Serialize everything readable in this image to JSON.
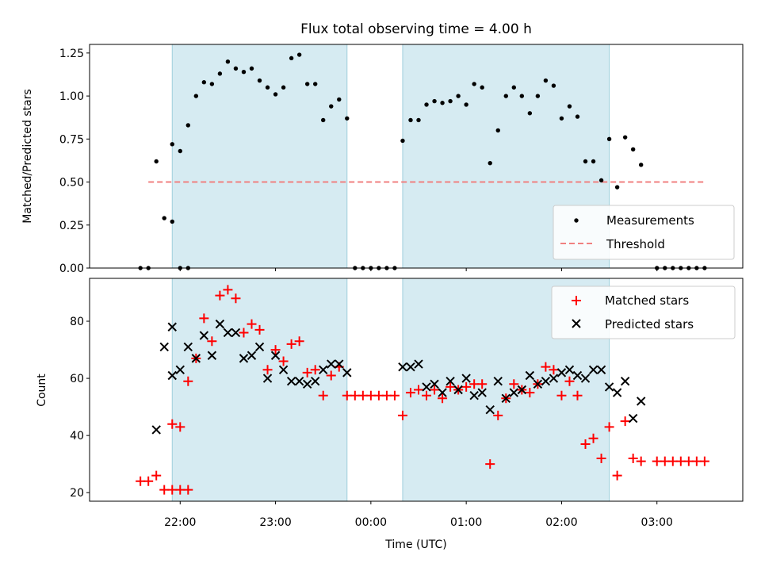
{
  "chart_data": [
    {
      "type": "scatter",
      "title": "Flux total observing time = 4.00 h",
      "ylabel": "Matched/Predicted stars",
      "xlabel": "",
      "ylim": [
        0,
        1.3
      ],
      "xlim_hours": [
        -2.95,
        3.9
      ],
      "yticks": [
        0,
        0.25,
        0.5,
        0.75,
        1.0,
        1.25
      ],
      "ytick_labels": [
        "0.00",
        "0.25",
        "0.50",
        "0.75",
        "1.00",
        "1.25"
      ],
      "legend_position": "lower-right",
      "shaded_time_ranges": [
        {
          "start": "21:55",
          "end": "23:45"
        },
        {
          "start": "00:20",
          "end": "02:30"
        }
      ],
      "threshold": {
        "name": "Threshold",
        "value": 0.5,
        "x_start": "21:40",
        "x_end": "03:30",
        "color": "#f08080"
      },
      "series": [
        {
          "name": "Measurements",
          "color": "#000000",
          "marker": "dot",
          "points": [
            [
              "21:35",
              0.0
            ],
            [
              "21:40",
              0.0
            ],
            [
              "21:45",
              0.62
            ],
            [
              "21:50",
              0.29
            ],
            [
              "21:55",
              0.27
            ],
            [
              "22:00",
              0.0
            ],
            [
              "22:05",
              0.0
            ],
            [
              "21:55",
              0.72
            ],
            [
              "22:00",
              0.68
            ],
            [
              "22:05",
              0.83
            ],
            [
              "22:10",
              1.0
            ],
            [
              "22:15",
              1.08
            ],
            [
              "22:20",
              1.07
            ],
            [
              "22:25",
              1.13
            ],
            [
              "22:30",
              1.2
            ],
            [
              "22:35",
              1.16
            ],
            [
              "22:40",
              1.14
            ],
            [
              "22:45",
              1.16
            ],
            [
              "22:50",
              1.09
            ],
            [
              "22:55",
              1.05
            ],
            [
              "23:00",
              1.01
            ],
            [
              "23:05",
              1.05
            ],
            [
              "23:10",
              1.22
            ],
            [
              "23:15",
              1.24
            ],
            [
              "23:20",
              1.07
            ],
            [
              "23:25",
              1.07
            ],
            [
              "23:30",
              0.86
            ],
            [
              "23:35",
              0.94
            ],
            [
              "23:40",
              0.98
            ],
            [
              "23:45",
              0.87
            ],
            [
              "23:50",
              0.0
            ],
            [
              "23:55",
              0.0
            ],
            [
              "00:00",
              0.0
            ],
            [
              "00:05",
              0.0
            ],
            [
              "00:10",
              0.0
            ],
            [
              "00:15",
              0.0
            ],
            [
              "00:20",
              0.74
            ],
            [
              "00:25",
              0.86
            ],
            [
              "00:30",
              0.86
            ],
            [
              "00:35",
              0.95
            ],
            [
              "00:40",
              0.97
            ],
            [
              "00:45",
              0.96
            ],
            [
              "00:50",
              0.97
            ],
            [
              "00:55",
              1.0
            ],
            [
              "01:00",
              0.95
            ],
            [
              "01:05",
              1.07
            ],
            [
              "01:10",
              1.05
            ],
            [
              "01:15",
              0.61
            ],
            [
              "01:20",
              0.8
            ],
            [
              "01:25",
              1.0
            ],
            [
              "01:30",
              1.05
            ],
            [
              "01:35",
              1.0
            ],
            [
              "01:40",
              0.9
            ],
            [
              "01:45",
              1.0
            ],
            [
              "01:50",
              1.09
            ],
            [
              "01:55",
              1.06
            ],
            [
              "02:00",
              0.87
            ],
            [
              "02:05",
              0.94
            ],
            [
              "02:10",
              0.88
            ],
            [
              "02:15",
              0.62
            ],
            [
              "02:20",
              0.62
            ],
            [
              "02:25",
              0.51
            ],
            [
              "02:30",
              0.75
            ],
            [
              "02:35",
              0.47
            ],
            [
              "02:40",
              0.76
            ],
            [
              "02:45",
              0.69
            ],
            [
              "02:50",
              0.6
            ],
            [
              "03:00",
              0.0
            ],
            [
              "03:05",
              0.0
            ],
            [
              "03:10",
              0.0
            ],
            [
              "03:15",
              0.0
            ],
            [
              "03:20",
              0.0
            ],
            [
              "03:25",
              0.0
            ],
            [
              "03:30",
              0.0
            ]
          ]
        }
      ]
    },
    {
      "type": "scatter",
      "title": "",
      "xlabel": "Time (UTC)",
      "ylabel": "Count",
      "ylim": [
        17,
        95
      ],
      "xlim_hours": [
        -2.95,
        3.9
      ],
      "yticks": [
        20,
        40,
        60,
        80
      ],
      "ytick_labels": [
        "20",
        "40",
        "60",
        "80"
      ],
      "xticks": [
        "22:00",
        "23:00",
        "00:00",
        "01:00",
        "02:00",
        "03:00"
      ],
      "legend_position": "upper-right",
      "shaded_time_ranges": [
        {
          "start": "21:55",
          "end": "23:45"
        },
        {
          "start": "00:20",
          "end": "02:30"
        }
      ],
      "series": [
        {
          "name": "Matched stars",
          "color": "#ff0000",
          "marker": "plus",
          "points": [
            [
              "21:35",
              24
            ],
            [
              "21:40",
              24
            ],
            [
              "21:45",
              26
            ],
            [
              "21:50",
              21
            ],
            [
              "21:55",
              21
            ],
            [
              "22:00",
              21
            ],
            [
              "22:05",
              21
            ],
            [
              "21:55",
              44
            ],
            [
              "22:00",
              43
            ],
            [
              "22:05",
              59
            ],
            [
              "22:10",
              67
            ],
            [
              "22:15",
              81
            ],
            [
              "22:20",
              73
            ],
            [
              "22:25",
              89
            ],
            [
              "22:30",
              91
            ],
            [
              "22:35",
              88
            ],
            [
              "22:40",
              76
            ],
            [
              "22:45",
              79
            ],
            [
              "22:50",
              77
            ],
            [
              "22:55",
              63
            ],
            [
              "23:00",
              70
            ],
            [
              "23:05",
              66
            ],
            [
              "23:10",
              72
            ],
            [
              "23:15",
              73
            ],
            [
              "23:20",
              62
            ],
            [
              "23:25",
              63
            ],
            [
              "23:30",
              54
            ],
            [
              "23:35",
              61
            ],
            [
              "23:40",
              64
            ],
            [
              "23:45",
              54
            ],
            [
              "23:50",
              54
            ],
            [
              "23:55",
              54
            ],
            [
              "00:00",
              54
            ],
            [
              "00:05",
              54
            ],
            [
              "00:10",
              54
            ],
            [
              "00:15",
              54
            ],
            [
              "00:20",
              47
            ],
            [
              "00:25",
              55
            ],
            [
              "00:30",
              56
            ],
            [
              "00:35",
              54
            ],
            [
              "00:40",
              56
            ],
            [
              "00:45",
              53
            ],
            [
              "00:50",
              57
            ],
            [
              "00:55",
              56
            ],
            [
              "01:00",
              57
            ],
            [
              "01:05",
              58
            ],
            [
              "01:10",
              58
            ],
            [
              "01:15",
              30
            ],
            [
              "01:20",
              47
            ],
            [
              "01:25",
              53
            ],
            [
              "01:30",
              58
            ],
            [
              "01:35",
              56
            ],
            [
              "01:40",
              55
            ],
            [
              "01:45",
              58
            ],
            [
              "01:50",
              64
            ],
            [
              "01:55",
              63
            ],
            [
              "02:00",
              54
            ],
            [
              "02:05",
              59
            ],
            [
              "02:10",
              54
            ],
            [
              "02:15",
              37
            ],
            [
              "02:20",
              39
            ],
            [
              "02:25",
              32
            ],
            [
              "02:30",
              43
            ],
            [
              "02:35",
              26
            ],
            [
              "02:40",
              45
            ],
            [
              "02:45",
              32
            ],
            [
              "02:50",
              31
            ],
            [
              "03:00",
              31
            ],
            [
              "03:05",
              31
            ],
            [
              "03:10",
              31
            ],
            [
              "03:15",
              31
            ],
            [
              "03:20",
              31
            ],
            [
              "03:25",
              31
            ],
            [
              "03:30",
              31
            ]
          ]
        },
        {
          "name": "Predicted stars",
          "color": "#000000",
          "marker": "x",
          "points": [
            [
              "21:45",
              42
            ],
            [
              "21:50",
              71
            ],
            [
              "21:55",
              78
            ],
            [
              "21:55",
              61
            ],
            [
              "22:00",
              63
            ],
            [
              "22:05",
              71
            ],
            [
              "22:10",
              67
            ],
            [
              "22:15",
              75
            ],
            [
              "22:20",
              68
            ],
            [
              "22:25",
              79
            ],
            [
              "22:30",
              76
            ],
            [
              "22:35",
              76
            ],
            [
              "22:40",
              67
            ],
            [
              "22:45",
              68
            ],
            [
              "22:50",
              71
            ],
            [
              "22:55",
              60
            ],
            [
              "23:00",
              68
            ],
            [
              "23:05",
              63
            ],
            [
              "23:10",
              59
            ],
            [
              "23:15",
              59
            ],
            [
              "23:20",
              58
            ],
            [
              "23:25",
              59
            ],
            [
              "23:30",
              63
            ],
            [
              "23:35",
              65
            ],
            [
              "23:40",
              65
            ],
            [
              "23:45",
              62
            ],
            [
              "00:20",
              64
            ],
            [
              "00:25",
              64
            ],
            [
              "00:30",
              65
            ],
            [
              "00:35",
              57
            ],
            [
              "00:40",
              58
            ],
            [
              "00:45",
              55
            ],
            [
              "00:50",
              59
            ],
            [
              "00:55",
              56
            ],
            [
              "01:00",
              60
            ],
            [
              "01:05",
              54
            ],
            [
              "01:10",
              55
            ],
            [
              "01:15",
              49
            ],
            [
              "01:20",
              59
            ],
            [
              "01:25",
              53
            ],
            [
              "01:30",
              55
            ],
            [
              "01:35",
              56
            ],
            [
              "01:40",
              61
            ],
            [
              "01:45",
              58
            ],
            [
              "01:50",
              59
            ],
            [
              "01:55",
              60
            ],
            [
              "02:00",
              62
            ],
            [
              "02:05",
              63
            ],
            [
              "02:10",
              61
            ],
            [
              "02:15",
              60
            ],
            [
              "02:20",
              63
            ],
            [
              "02:25",
              63
            ],
            [
              "02:30",
              57
            ],
            [
              "02:35",
              55
            ],
            [
              "02:40",
              59
            ],
            [
              "02:45",
              46
            ],
            [
              "02:50",
              52
            ]
          ]
        }
      ]
    }
  ]
}
